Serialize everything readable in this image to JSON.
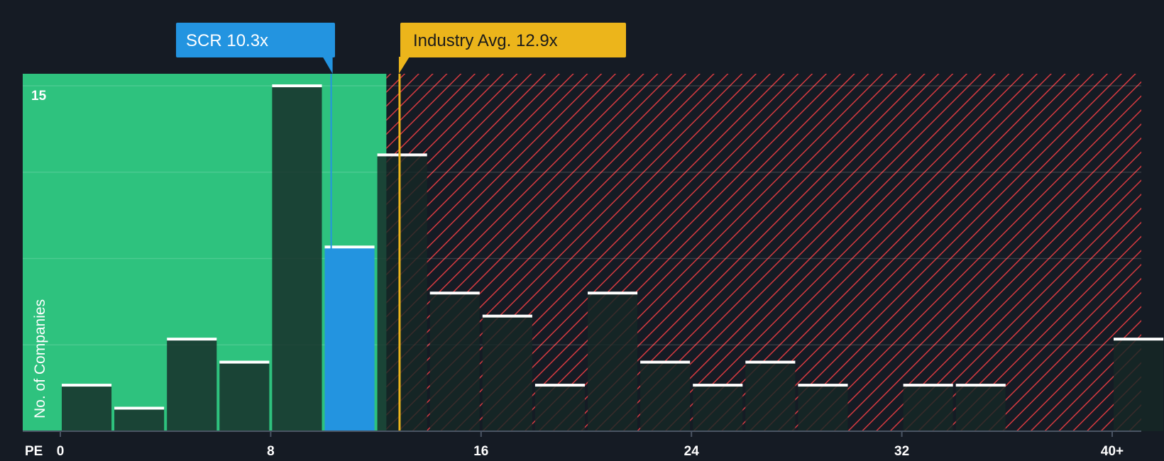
{
  "chart_data": {
    "type": "bar",
    "title": "",
    "xlabel": "PE",
    "ylabel": "No. of Companies",
    "xlim": [
      0,
      41
    ],
    "ylim": [
      0,
      15.5
    ],
    "bin_width": 2,
    "x_ticks": [
      {
        "value": 0,
        "label": "0"
      },
      {
        "value": 8,
        "label": "8"
      },
      {
        "value": 16,
        "label": "16"
      },
      {
        "value": 24,
        "label": "24"
      },
      {
        "value": 32,
        "label": "32"
      },
      {
        "value": 40,
        "label": "40+"
      }
    ],
    "y_ticks": [
      {
        "value": 15,
        "label": "15"
      }
    ],
    "gridlines_y": [
      3.75,
      7.5,
      11.25,
      15
    ],
    "bins": [
      {
        "start": 0,
        "value": 2
      },
      {
        "start": 2,
        "value": 1
      },
      {
        "start": 4,
        "value": 4
      },
      {
        "start": 6,
        "value": 3
      },
      {
        "start": 8,
        "value": 15
      },
      {
        "start": 10,
        "value": 8,
        "highlight": true
      },
      {
        "start": 12,
        "value": 12
      },
      {
        "start": 14,
        "value": 6
      },
      {
        "start": 16,
        "value": 5
      },
      {
        "start": 18,
        "value": 2
      },
      {
        "start": 20,
        "value": 6
      },
      {
        "start": 22,
        "value": 3
      },
      {
        "start": 24,
        "value": 2
      },
      {
        "start": 26,
        "value": 3
      },
      {
        "start": 28,
        "value": 2
      },
      {
        "start": 30,
        "value": 0
      },
      {
        "start": 32,
        "value": 2
      },
      {
        "start": 34,
        "value": 2
      },
      {
        "start": 36,
        "value": 0
      },
      {
        "start": 38,
        "value": 0
      },
      {
        "start": 40,
        "value": 4
      }
    ],
    "fair_value_boundary": 12.4,
    "company": {
      "label": "SCR 10.3x",
      "value": 10.3
    },
    "industry": {
      "label": "Industry Avg. 12.9x",
      "value": 12.9
    },
    "colors": {
      "background": "#151b24",
      "green_zone": "#2ec27e",
      "red_hatch": "#e0383e",
      "bar_dark": "#1c3d35",
      "bar_highlight": "#2394e0",
      "bar_cap": "#ffffff",
      "company_callout": "#2394e0",
      "industry_callout": "#ecb51b"
    }
  }
}
